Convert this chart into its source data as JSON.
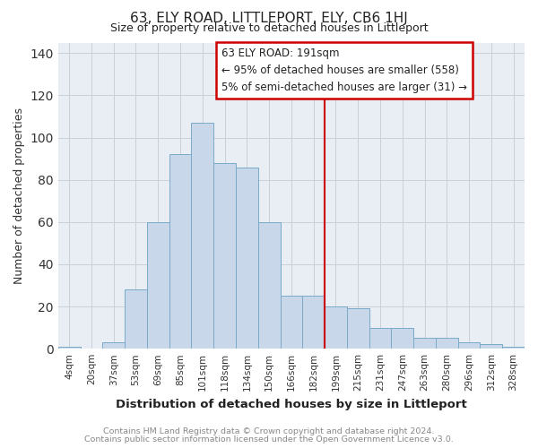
{
  "title": "63, ELY ROAD, LITTLEPORT, ELY, CB6 1HJ",
  "subtitle": "Size of property relative to detached houses in Littleport",
  "xlabel": "Distribution of detached houses by size in Littleport",
  "ylabel": "Number of detached properties",
  "bin_labels": [
    "4sqm",
    "20sqm",
    "37sqm",
    "53sqm",
    "69sqm",
    "85sqm",
    "101sqm",
    "118sqm",
    "134sqm",
    "150sqm",
    "166sqm",
    "182sqm",
    "199sqm",
    "215sqm",
    "231sqm",
    "247sqm",
    "263sqm",
    "280sqm",
    "296sqm",
    "312sqm",
    "328sqm"
  ],
  "bar_heights": [
    1,
    0,
    3,
    28,
    60,
    92,
    107,
    88,
    86,
    60,
    25,
    25,
    20,
    19,
    10,
    10,
    5,
    5,
    3,
    2,
    1
  ],
  "bar_color": "#c8d8ea",
  "bar_edge_color": "#7aaac8",
  "vline_color": "#cc0000",
  "annotation_title": "63 ELY ROAD: 191sqm",
  "annotation_line1": "← 95% of detached houses are smaller (558)",
  "annotation_line2": "5% of semi-detached houses are larger (31) →",
  "annotation_box_facecolor": "#ffffff",
  "annotation_box_edgecolor": "#cc0000",
  "footer1": "Contains HM Land Registry data © Crown copyright and database right 2024.",
  "footer2": "Contains public sector information licensed under the Open Government Licence v3.0.",
  "ylim": [
    0,
    145
  ],
  "fig_facecolor": "#ffffff",
  "ax_facecolor": "#e8eef4",
  "grid_color": "#c8d0da",
  "tick_label_color": "#333333",
  "title_color": "#222222",
  "ylabel_color": "#333333",
  "xlabel_color": "#222222",
  "footer_color": "#888888"
}
